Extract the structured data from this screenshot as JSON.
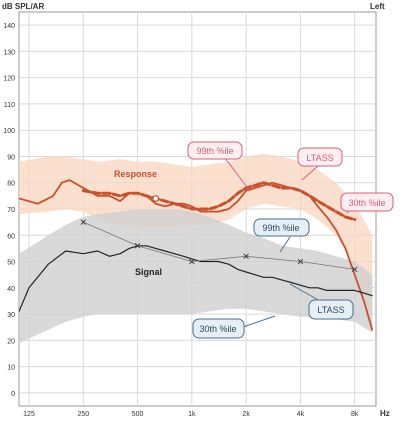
{
  "chart": {
    "ylabel": "dB SPL/AR",
    "ear_label": "Left",
    "x_unit": "Hz"
  },
  "callouts": {
    "p99_upper": "99th %ile",
    "ltass_upper": "LTASS",
    "p30_upper": "30th %ile",
    "p99_lower": "99th %ile",
    "ltass_lower": "LTASS",
    "p30_lower": "30th %ile"
  },
  "labels": {
    "response": "Response",
    "signal": "Signal"
  },
  "colors": {
    "response": "#c8502a",
    "response_band": "#fbd5bf",
    "signal": "#222222",
    "signal_band": "#cfcfcf",
    "pink_callout_border": "#d4607a",
    "pink_callout_fill": "#ffeef2",
    "blue_callout_border": "#4a6f8e",
    "blue_callout_fill": "#e6eef6",
    "grid": "#d9d9d9",
    "axis": "#999999",
    "tick_text": "#333333"
  },
  "chart_data": {
    "type": "line",
    "x_scale": "log",
    "x_ticks": [
      125,
      250,
      500,
      1000,
      2000,
      4000,
      8000
    ],
    "x_tick_labels": [
      "125",
      "250",
      "500",
      "1k",
      "2k",
      "4k",
      "8k"
    ],
    "x_range": [
      110,
      10500
    ],
    "y_ticks": [
      0,
      10,
      20,
      30,
      40,
      50,
      60,
      70,
      80,
      90,
      100,
      110,
      120,
      130,
      140
    ],
    "ylim": [
      -5,
      145
    ],
    "grid": true,
    "series": [
      {
        "name": "Response",
        "style": "solid",
        "x": [
          110,
          140,
          170,
          190,
          210,
          250,
          300,
          350,
          400,
          450,
          500,
          560,
          630,
          710,
          800,
          900,
          1000,
          1120,
          1250,
          1400,
          1600,
          1800,
          2000,
          2240,
          2500,
          2800,
          3150,
          3550,
          4000,
          4500,
          5000,
          5600,
          6300,
          7100,
          8000,
          9000,
          10000
        ],
        "values": [
          74,
          72,
          75,
          80,
          81,
          78,
          75,
          75,
          73,
          76,
          76,
          75,
          72,
          71,
          72,
          72,
          71,
          69,
          69,
          69,
          70,
          73,
          77,
          78,
          79,
          80,
          79,
          78,
          77,
          75,
          71,
          67,
          62,
          55,
          45,
          35,
          24
        ]
      },
      {
        "name": "Response LTASS",
        "style": "dashed",
        "x": [
          250,
          300,
          350,
          400,
          450,
          500,
          560,
          630,
          710,
          800,
          900,
          1000,
          1120,
          1250,
          1400,
          1600,
          1800,
          2000,
          2240,
          2500,
          2800,
          3150,
          3550,
          4000,
          4500,
          5000,
          5600,
          6300,
          7100,
          8000
        ],
        "values": [
          77,
          76,
          76,
          75,
          76,
          76,
          75,
          74,
          73,
          72,
          71,
          70,
          70,
          70,
          71,
          73,
          76,
          78,
          79,
          80,
          79,
          78,
          78,
          77,
          75,
          73,
          71,
          69,
          67,
          66
        ]
      },
      {
        "name": "Signal",
        "style": "solid",
        "x": [
          110,
          125,
          160,
          200,
          250,
          300,
          350,
          400,
          450,
          500,
          560,
          630,
          710,
          800,
          900,
          1000,
          1120,
          1250,
          1400,
          1600,
          1800,
          2000,
          2240,
          2500,
          2800,
          3150,
          3550,
          4000,
          4500,
          5000,
          5600,
          6300,
          7100,
          8000,
          9000,
          10000
        ],
        "values": [
          31,
          40,
          49,
          54,
          53,
          54,
          52,
          53,
          55,
          56,
          56,
          55,
          54,
          53,
          52,
          51,
          50,
          50,
          50,
          49,
          47,
          46,
          45,
          44,
          44,
          43,
          42,
          41,
          40,
          40,
          39,
          39,
          39,
          39,
          38,
          37
        ]
      },
      {
        "name": "Signal LTASS",
        "style": "solid-thin",
        "x": [
          250,
          500,
          1000,
          2000,
          4000,
          8000
        ],
        "values": [
          65,
          56,
          50,
          52,
          50,
          47
        ],
        "markers": "x"
      }
    ],
    "bands": [
      {
        "name": "Response range",
        "x": [
          110,
          160,
          200,
          250,
          300,
          400,
          500,
          630,
          800,
          1000,
          1250,
          1600,
          2000,
          2500,
          3150,
          4000,
          5000,
          6300,
          8000,
          10000
        ],
        "upper": [
          88,
          90,
          90,
          89,
          88,
          89,
          88,
          88,
          87,
          86,
          87,
          88,
          90,
          91,
          90,
          88,
          85,
          80,
          72,
          60
        ],
        "lower": [
          68,
          69,
          70,
          69,
          66,
          64,
          63,
          63,
          63,
          64,
          64,
          66,
          70,
          72,
          71,
          70,
          66,
          60,
          48,
          24
        ]
      },
      {
        "name": "Signal range",
        "x": [
          110,
          160,
          200,
          250,
          300,
          400,
          500,
          630,
          800,
          1000,
          1250,
          1600,
          2000,
          2500,
          3150,
          4000,
          5000,
          6300,
          8000,
          10000
        ],
        "upper": [
          53,
          60,
          64,
          67,
          68,
          69,
          70,
          70,
          70,
          69,
          67,
          64,
          61,
          59,
          56,
          55,
          54,
          52,
          50,
          45
        ],
        "lower": [
          19,
          24,
          27,
          29,
          30,
          30,
          30,
          30,
          30,
          30,
          31,
          32,
          32,
          31,
          30,
          29,
          29,
          28,
          27,
          23
        ]
      }
    ]
  }
}
